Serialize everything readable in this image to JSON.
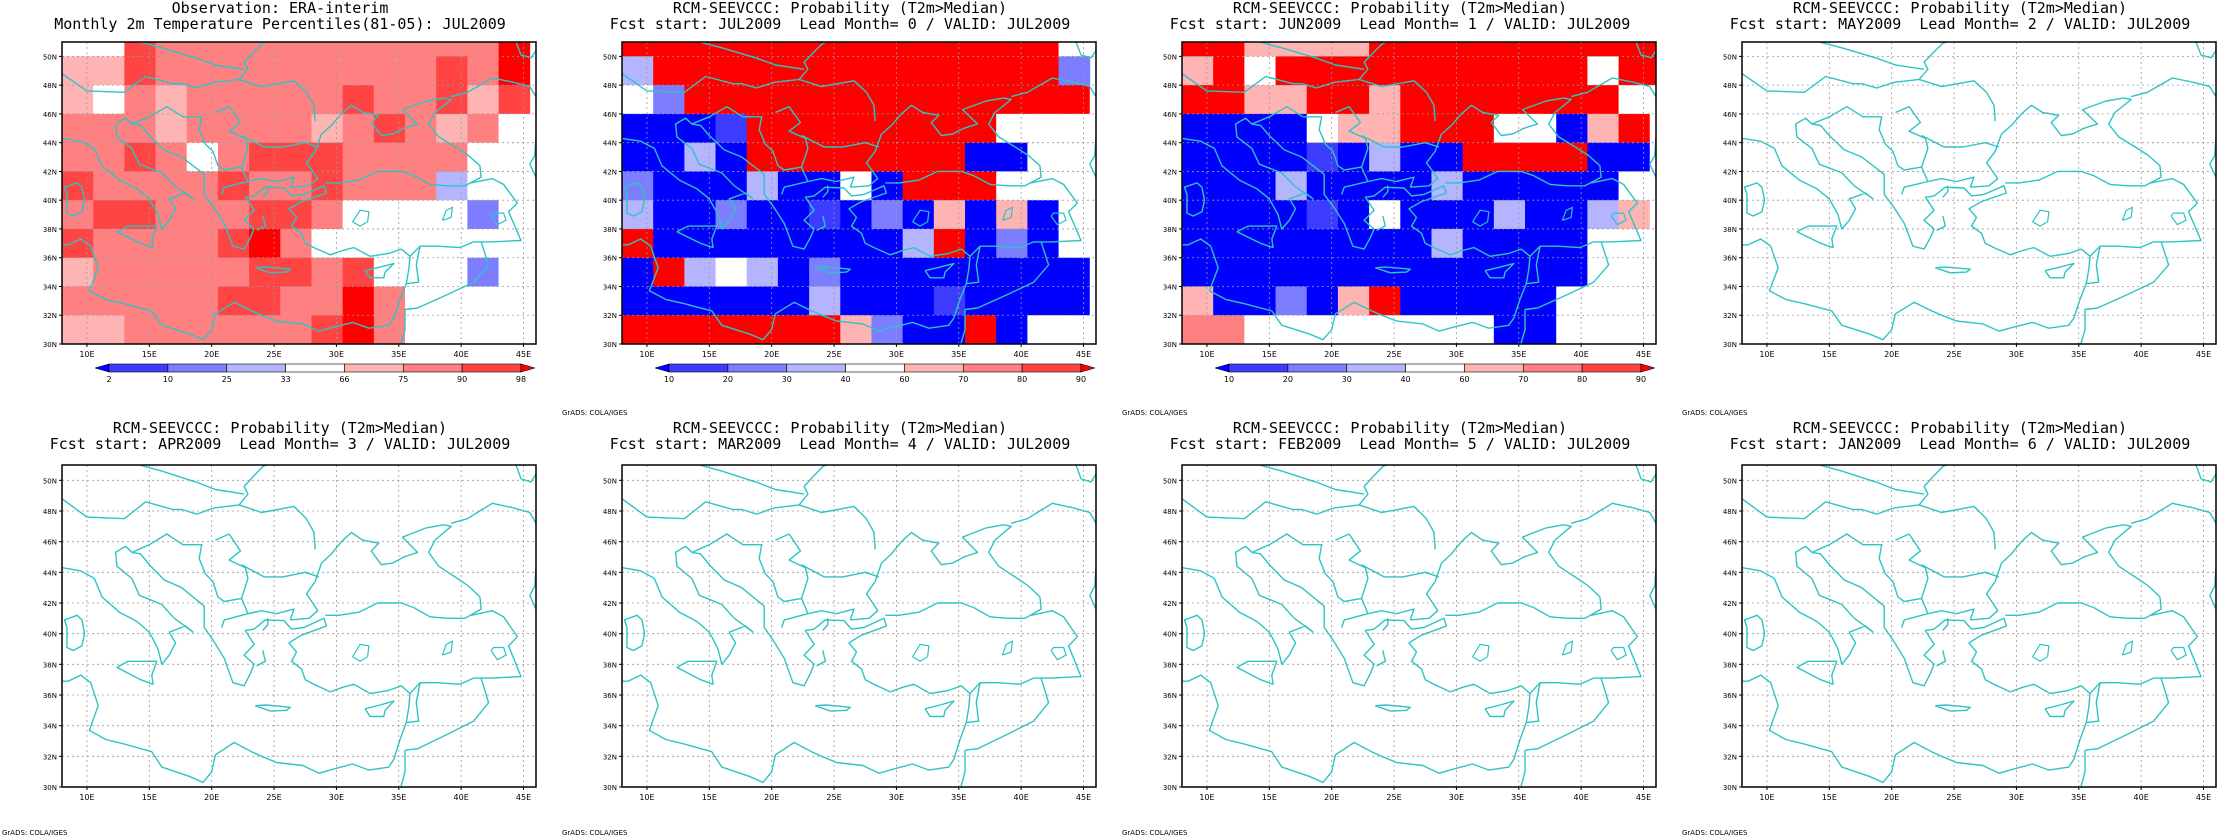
{
  "panels": [
    {
      "id": "obs",
      "title1": "Observation: ERA-interim",
      "title2": "Monthly 2m Temperature Percentiles(81-05): JUL2009",
      "filled": true,
      "colorbar": {
        "labels": [
          "2",
          "10",
          "25",
          "33",
          "66",
          "75",
          "90",
          "98"
        ]
      },
      "credit": ""
    },
    {
      "id": "lead0",
      "title1": "RCM-SEEVCCC: Probability (T2m>Median)",
      "title2": "Fcst start: JUL2009  Lead Month= 0 / VALID: JUL2009",
      "filled": true,
      "colorbar": {
        "labels": [
          "10",
          "20",
          "30",
          "40",
          "60",
          "70",
          "80",
          "90"
        ]
      },
      "credit": "GrADS: COLA/IGES"
    },
    {
      "id": "lead1",
      "title1": "RCM-SEEVCCC: Probability (T2m>Median)",
      "title2": "Fcst start: JUN2009  Lead Month= 1 / VALID: JUL2009",
      "filled": true,
      "colorbar": {
        "labels": [
          "10",
          "20",
          "30",
          "40",
          "60",
          "70",
          "80",
          "90"
        ]
      },
      "credit": "GrADS: COLA/IGES"
    },
    {
      "id": "lead2",
      "title1": "RCM-SEEVCCC: Probability (T2m>Median)",
      "title2": "Fcst start: MAY2009  Lead Month= 2 / VALID: JUL2009",
      "filled": false,
      "credit": "GrADS: COLA/IGES"
    },
    {
      "id": "lead3",
      "title1": "RCM-SEEVCCC: Probability (T2m>Median)",
      "title2": "Fcst start: APR2009  Lead Month= 3 / VALID: JUL2009",
      "filled": false,
      "credit": "GrADS: COLA/IGES"
    },
    {
      "id": "lead4",
      "title1": "RCM-SEEVCCC: Probability (T2m>Median)",
      "title2": "Fcst start: MAR2009  Lead Month= 4 / VALID: JUL2009",
      "filled": false,
      "credit": "GrADS: COLA/IGES"
    },
    {
      "id": "lead5",
      "title1": "RCM-SEEVCCC: Probability (T2m>Median)",
      "title2": "Fcst start: FEB2009  Lead Month= 5 / VALID: JUL2009",
      "filled": false,
      "credit": "GrADS: COLA/IGES"
    },
    {
      "id": "lead6",
      "title1": "RCM-SEEVCCC: Probability (T2m>Median)",
      "title2": "Fcst start: JAN2009  Lead Month= 6 / VALID: JUL2009",
      "filled": false,
      "credit": "GrADS: COLA/IGES"
    }
  ],
  "map": {
    "lon_range": [
      8,
      46
    ],
    "lat_range": [
      30,
      51
    ],
    "lon_ticks": [
      "10E",
      "15E",
      "20E",
      "25E",
      "30E",
      "35E",
      "40E",
      "45E"
    ],
    "lat_ticks": [
      "30N",
      "32N",
      "34N",
      "36N",
      "38N",
      "40N",
      "42N",
      "44N",
      "46N",
      "48N",
      "50N"
    ]
  },
  "colors": {
    "coast": "#2ec4c4",
    "grid": "#9a9a9a",
    "frame": "#000000",
    "palette": [
      "#0000ff",
      "#3c3cff",
      "#7d7dff",
      "#b4b4ff",
      "#ffffff",
      "#ffb4b4",
      "#ff8080",
      "#ff4444",
      "#ff0000"
    ]
  }
}
